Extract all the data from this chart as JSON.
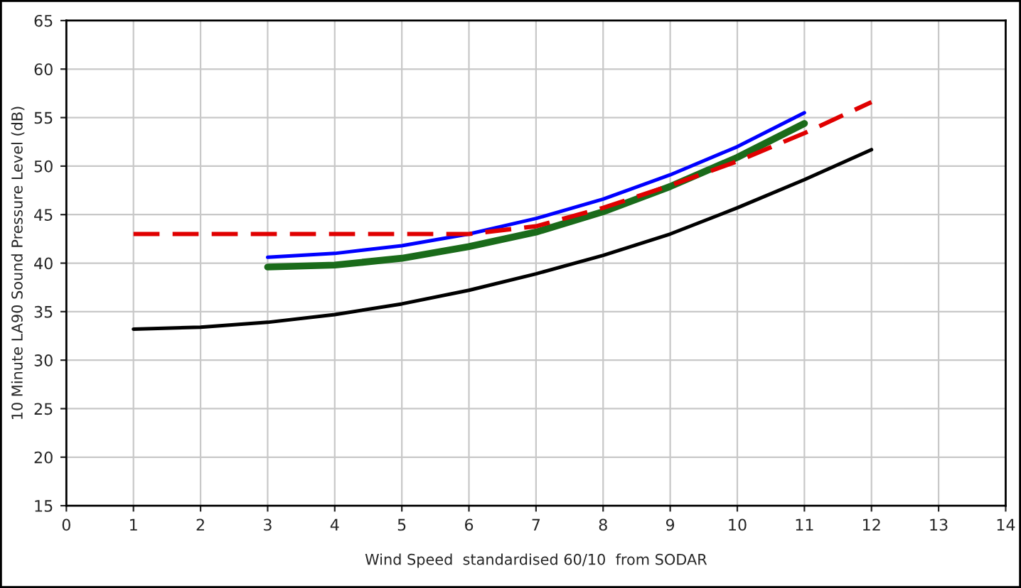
{
  "chart_data": {
    "type": "line",
    "xlabel": "Wind Speed  standardised 60/10  from SODAR",
    "ylabel": "10 Minute LA90 Sound Pressure Level (dB)",
    "xlim": [
      0,
      14
    ],
    "xticks": [
      0,
      1,
      2,
      3,
      4,
      5,
      6,
      7,
      8,
      9,
      10,
      11,
      12,
      13,
      14
    ],
    "ylim": [
      15,
      65
    ],
    "yticks": [
      15,
      20,
      25,
      30,
      35,
      40,
      45,
      50,
      55,
      60,
      65
    ],
    "grid": true,
    "legend": false,
    "marker": "none",
    "series": [
      {
        "color": "#000000",
        "line_style": "solid",
        "x": [
          1,
          2,
          3,
          4,
          5,
          6,
          7,
          8,
          9,
          10,
          11,
          12
        ],
        "values": [
          33.2,
          33.4,
          33.9,
          34.7,
          35.8,
          37.2,
          38.9,
          40.8,
          43.0,
          45.7,
          48.6,
          51.7
        ]
      },
      {
        "color": "#0000ff",
        "line_style": "solid",
        "x": [
          3,
          4,
          5,
          6,
          7,
          8,
          9,
          10,
          11
        ],
        "values": [
          40.6,
          41.0,
          41.8,
          43.0,
          44.6,
          46.6,
          49.1,
          52.0,
          55.5
        ]
      },
      {
        "color": "#1a6b1a",
        "line_style": "solid",
        "x": [
          3,
          4,
          5,
          6,
          7,
          8,
          9,
          10,
          11
        ],
        "values": [
          39.6,
          39.8,
          40.5,
          41.7,
          43.2,
          45.3,
          47.9,
          50.9,
          54.4
        ]
      },
      {
        "color": "#e00000",
        "line_style": "dashed",
        "x": [
          1,
          2,
          3,
          4,
          5,
          6,
          7,
          8,
          9,
          10,
          11,
          12
        ],
        "values": [
          43,
          43,
          43,
          43,
          43,
          43,
          43.8,
          45.7,
          48.0,
          50.5,
          53.4,
          56.6
        ]
      }
    ]
  }
}
